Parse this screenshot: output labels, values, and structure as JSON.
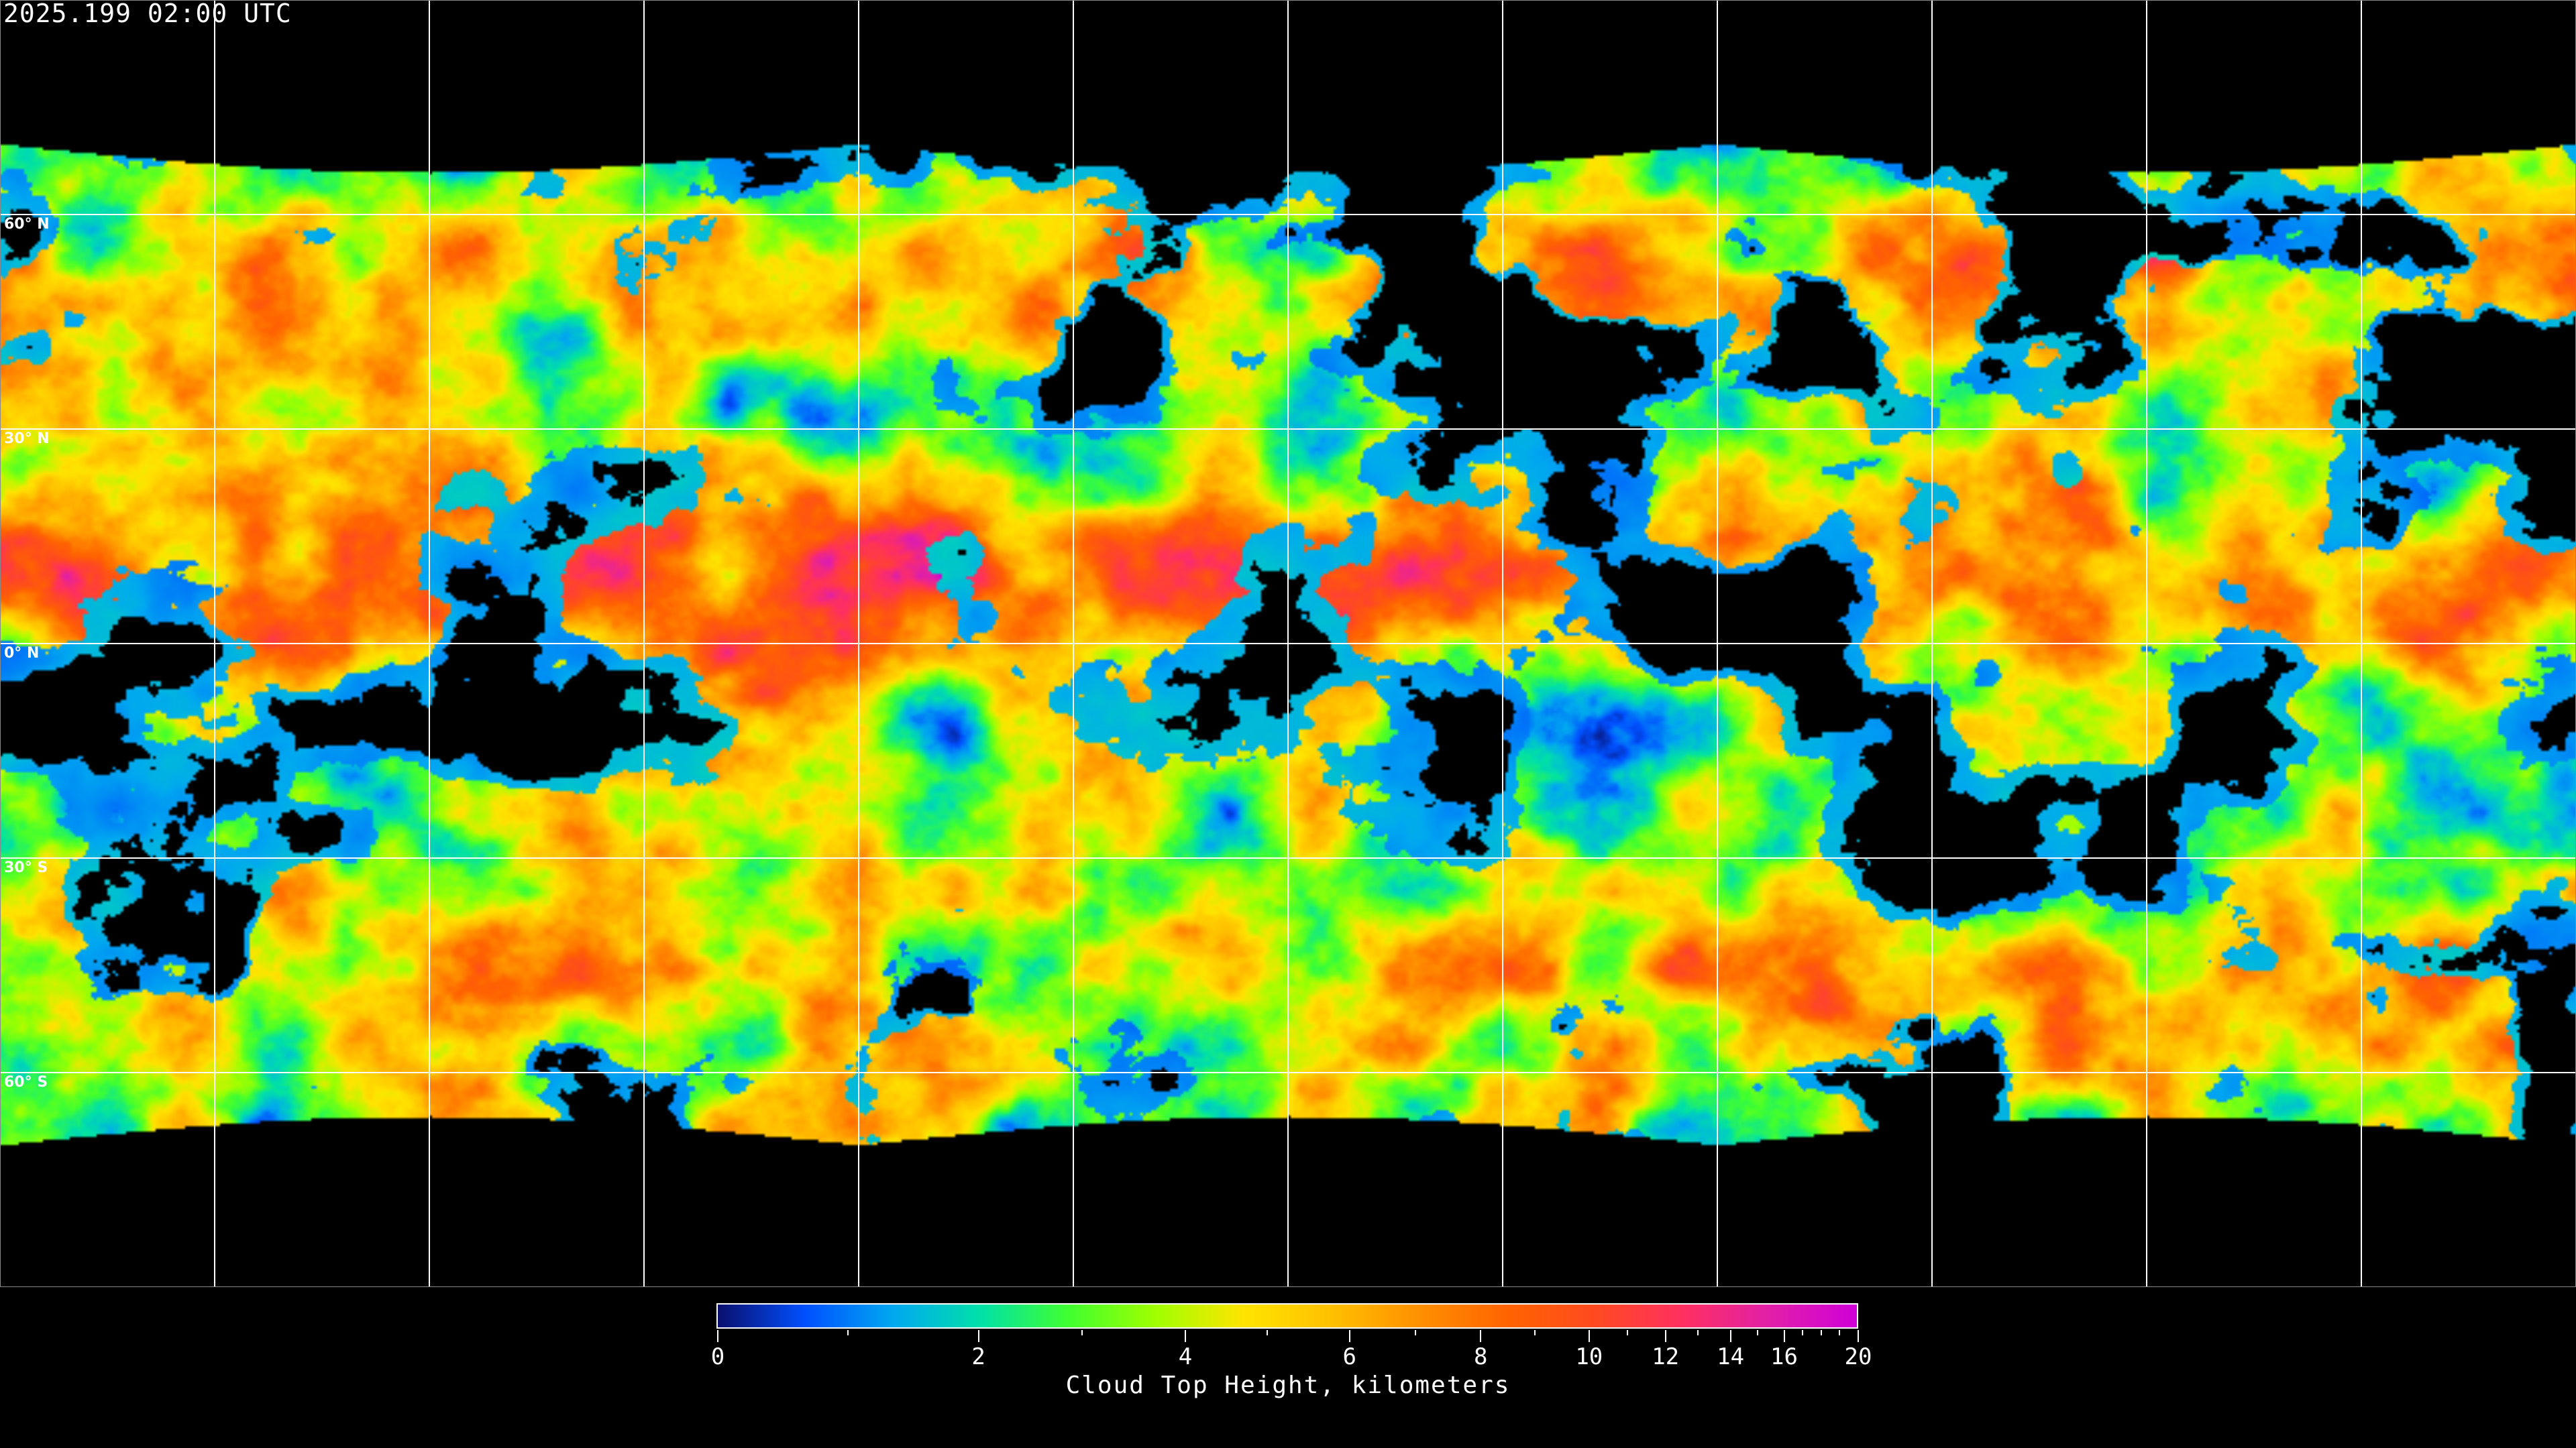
{
  "title": "2025.199 02:00 UTC",
  "latitude_labels": [
    "60° N",
    "30° N",
    "0° N",
    "30° S",
    "60° S"
  ],
  "colorbar": {
    "title": "Cloud Top Height, kilometers",
    "min": 0,
    "max": 20,
    "tick_labels": [
      "0",
      "2",
      "4",
      "6",
      "8",
      "10",
      "12",
      "14",
      "16",
      "20"
    ],
    "minor_ticks": [
      1,
      3,
      5,
      7,
      9,
      11,
      13,
      15,
      17,
      18,
      19
    ],
    "colors": [
      "#0a0f6e",
      "#0050ff",
      "#00a8f0",
      "#00e0a8",
      "#40ff30",
      "#a0ff00",
      "#ffe400",
      "#ffc000",
      "#ff9000",
      "#ff6400",
      "#ff4a20",
      "#ff3060",
      "#e020a8",
      "#d000d8"
    ]
  },
  "map": {
    "projection": "equirectangular",
    "grid_spacing_degrees": 30,
    "background": "#000000",
    "coastline_color": "#ffffff",
    "grid_color": "#ffffff"
  }
}
